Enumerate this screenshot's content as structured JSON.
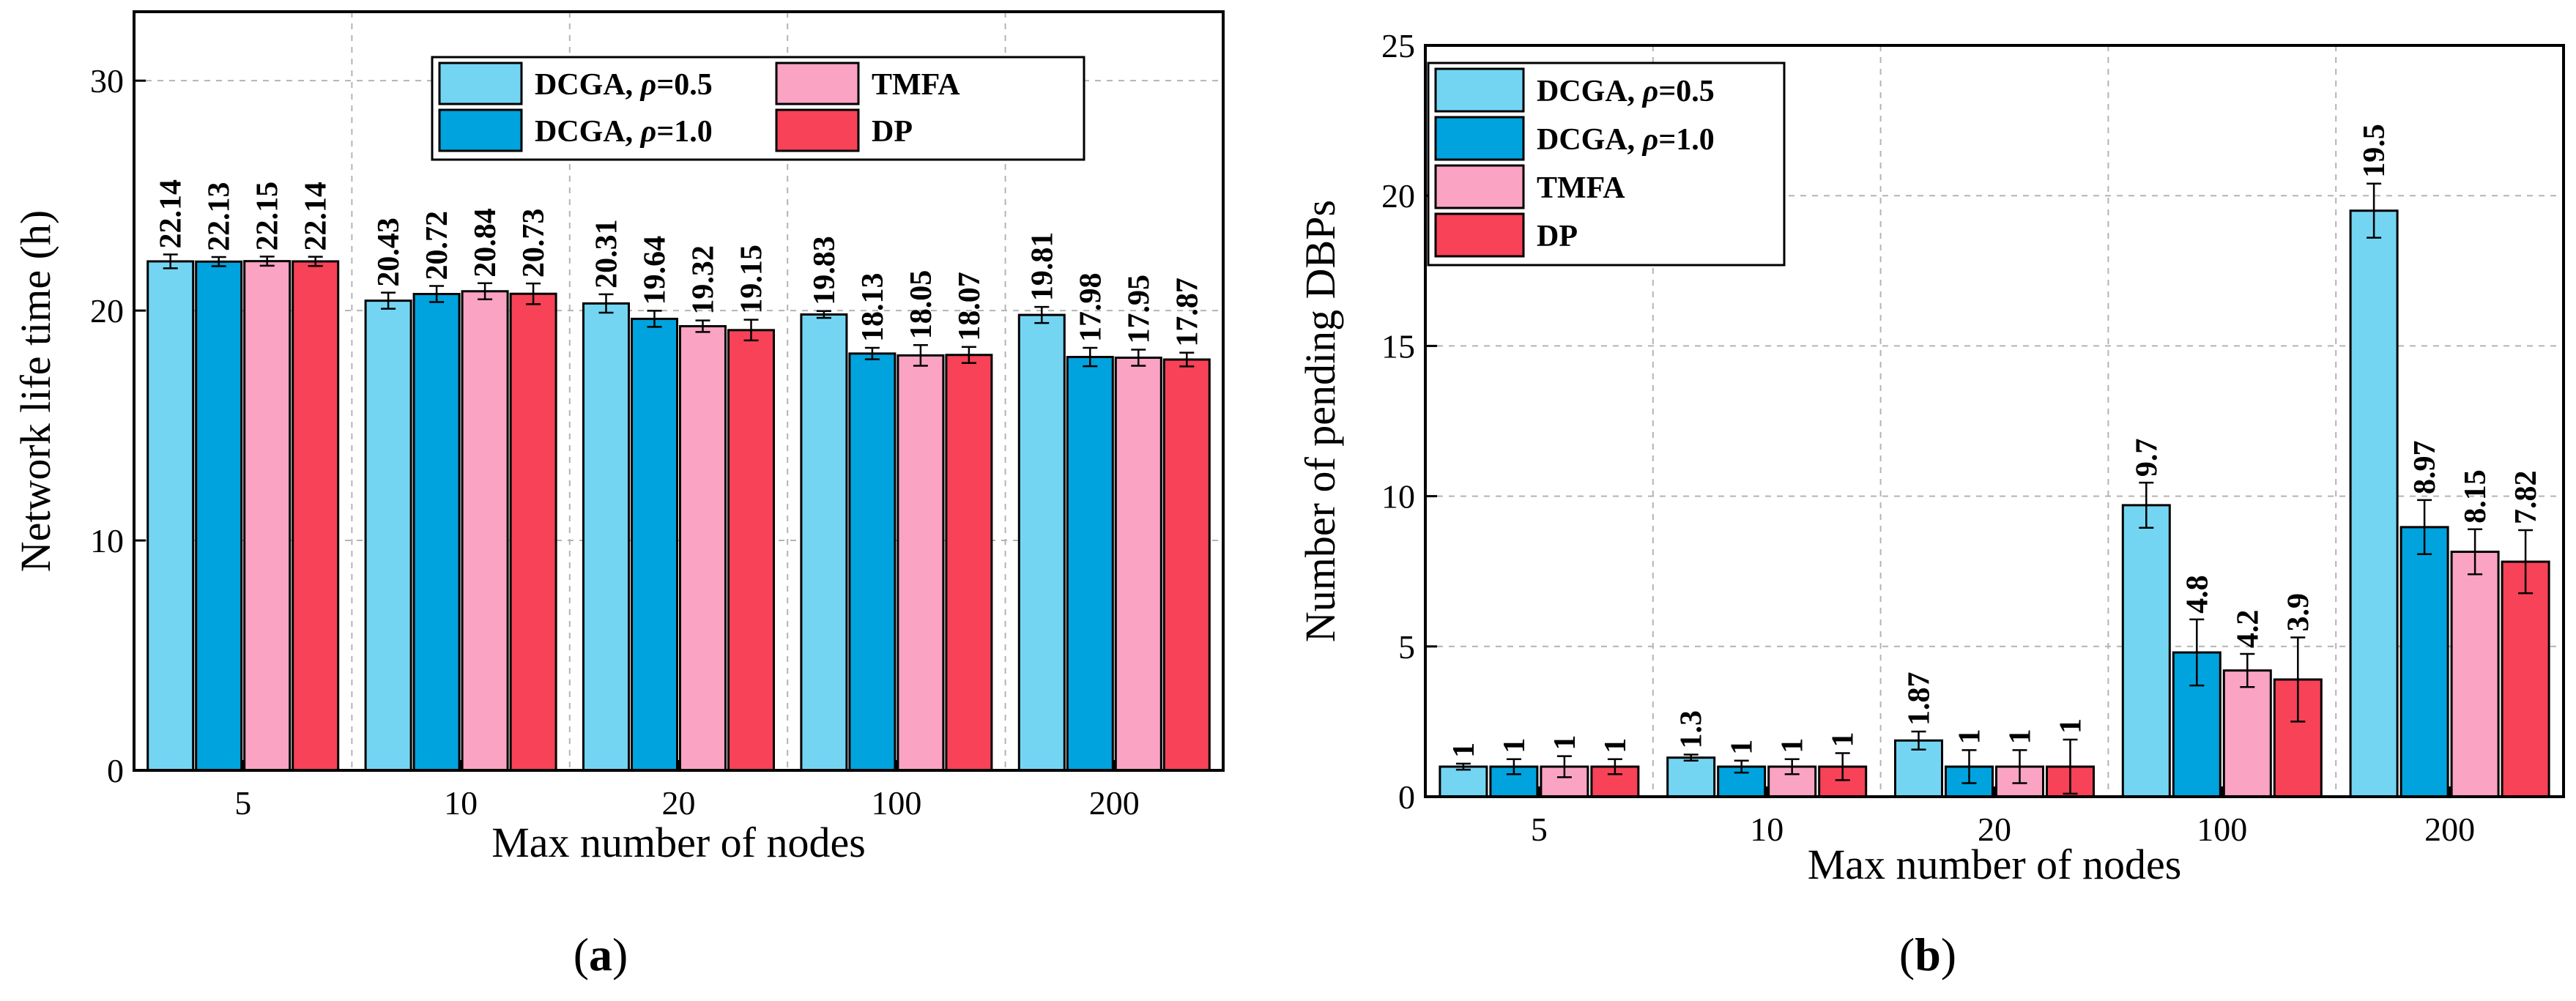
{
  "chart_data": [
    {
      "panel": "(a)",
      "type": "bar",
      "xlabel": "Max number of nodes",
      "ylabel": "Network life time (h)",
      "categories": [
        "5",
        "10",
        "20",
        "100",
        "200"
      ],
      "ylim": [
        0,
        33
      ],
      "yticks": [
        0,
        10,
        20,
        30
      ],
      "grid": true,
      "legend_position": "top-right",
      "legend_layout": "two-columns",
      "series": [
        {
          "name": "DCGA, ρ=0.5",
          "color": "#74d5f3",
          "values": [
            22.14,
            20.43,
            20.31,
            19.83,
            19.81
          ],
          "errors": [
            0.3,
            0.35,
            0.4,
            0.15,
            0.35
          ]
        },
        {
          "name": "DCGA, ρ=1.0",
          "color": "#00a3dd",
          "values": [
            22.13,
            20.72,
            19.64,
            18.13,
            17.98
          ],
          "errors": [
            0.2,
            0.35,
            0.35,
            0.25,
            0.4
          ]
        },
        {
          "name": "TMFA",
          "color": "#fba3c3",
          "values": [
            22.15,
            20.84,
            19.32,
            18.05,
            17.95
          ],
          "errors": [
            0.2,
            0.35,
            0.25,
            0.45,
            0.35
          ]
        },
        {
          "name": "DP",
          "color": "#f74257",
          "values": [
            22.14,
            20.73,
            19.15,
            18.07,
            17.87
          ],
          "errors": [
            0.2,
            0.45,
            0.45,
            0.35,
            0.3
          ]
        }
      ],
      "data_labels": [
        [
          "22.14",
          "20.43",
          "20.31",
          "19.83",
          "19.81"
        ],
        [
          "22.13",
          "20.72",
          "19.64",
          "18.13",
          "17.98"
        ],
        [
          "22.15",
          "20.84",
          "19.32",
          "18.05",
          "17.95"
        ],
        [
          "22.14",
          "20.73",
          "19.15",
          "18.07",
          "17.87"
        ]
      ]
    },
    {
      "panel": "(b)",
      "type": "bar",
      "xlabel": "Max number of nodes",
      "ylabel": "Number of  pending DBPs",
      "categories": [
        "5",
        "10",
        "20",
        "100",
        "200"
      ],
      "ylim": [
        0,
        25
      ],
      "yticks": [
        0,
        5,
        10,
        15,
        20,
        25
      ],
      "grid": true,
      "legend_position": "top-left",
      "legend_layout": "single-column",
      "series": [
        {
          "name": "DCGA, ρ=0.5",
          "color": "#74d5f3",
          "values": [
            1,
            1.3,
            1.87,
            9.7,
            19.5
          ],
          "errors": [
            0.1,
            0.1,
            0.3,
            0.75,
            0.9
          ]
        },
        {
          "name": "DCGA, ρ=1.0",
          "color": "#00a3dd",
          "values": [
            1,
            1,
            1,
            4.8,
            8.97
          ],
          "errors": [
            0.25,
            0.2,
            0.55,
            1.1,
            0.9
          ]
        },
        {
          "name": "TMFA",
          "color": "#fba3c3",
          "values": [
            1,
            1,
            1,
            4.2,
            8.15
          ],
          "errors": [
            0.35,
            0.25,
            0.55,
            0.55,
            0.75
          ]
        },
        {
          "name": "DP",
          "color": "#f74257",
          "values": [
            1,
            1,
            1,
            3.9,
            7.82
          ],
          "errors": [
            0.25,
            0.45,
            0.9,
            1.4,
            1.05
          ]
        }
      ],
      "data_labels": [
        [
          "1",
          "1.3",
          "1.87",
          "9.7",
          "19.5"
        ],
        [
          "1",
          "1",
          "1",
          "4.8",
          "8.97"
        ],
        [
          "1",
          "1",
          "1",
          "4.2",
          "8.15"
        ],
        [
          "1",
          "1",
          "1",
          "3.9",
          "7.82"
        ]
      ]
    }
  ],
  "legend": {
    "series_prefix": "DCGA, ",
    "rho_symbol": "ρ",
    "rho_values": [
      "=0.5",
      "=1.0"
    ],
    "tmfa": "TMFA",
    "dp": "DP"
  },
  "panel_labels": {
    "a_open": "(",
    "a_letter": "a",
    "a_close": ")",
    "b_open": "(",
    "b_letter": "b",
    "b_close": ")"
  }
}
